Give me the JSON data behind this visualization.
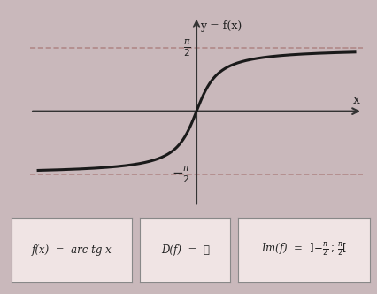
{
  "bg_color": "#c9b8bb",
  "plot_bg_color": "#e8d8d8",
  "box_bg_color": "#f0e4e4",
  "curve_color": "#1a1a1a",
  "dashed_color": "#b08888",
  "axis_color": "#333333",
  "text_color": "#222222",
  "x_range": [
    -10,
    10
  ],
  "y_range": [
    -2.2,
    2.2
  ],
  "asymptote_y": 1.5707963267948966,
  "title_label": "y = f(x)",
  "x_label": "x",
  "pi_half_label": "π\n2",
  "neg_pi_half_label": "−π\n2",
  "formula1": "f(x)  =  arc tg x",
  "formula2": "D(f)  =  ℝ",
  "formula3": "Im(f)  =  ]−π\n2\n ; π\n2\n["
}
